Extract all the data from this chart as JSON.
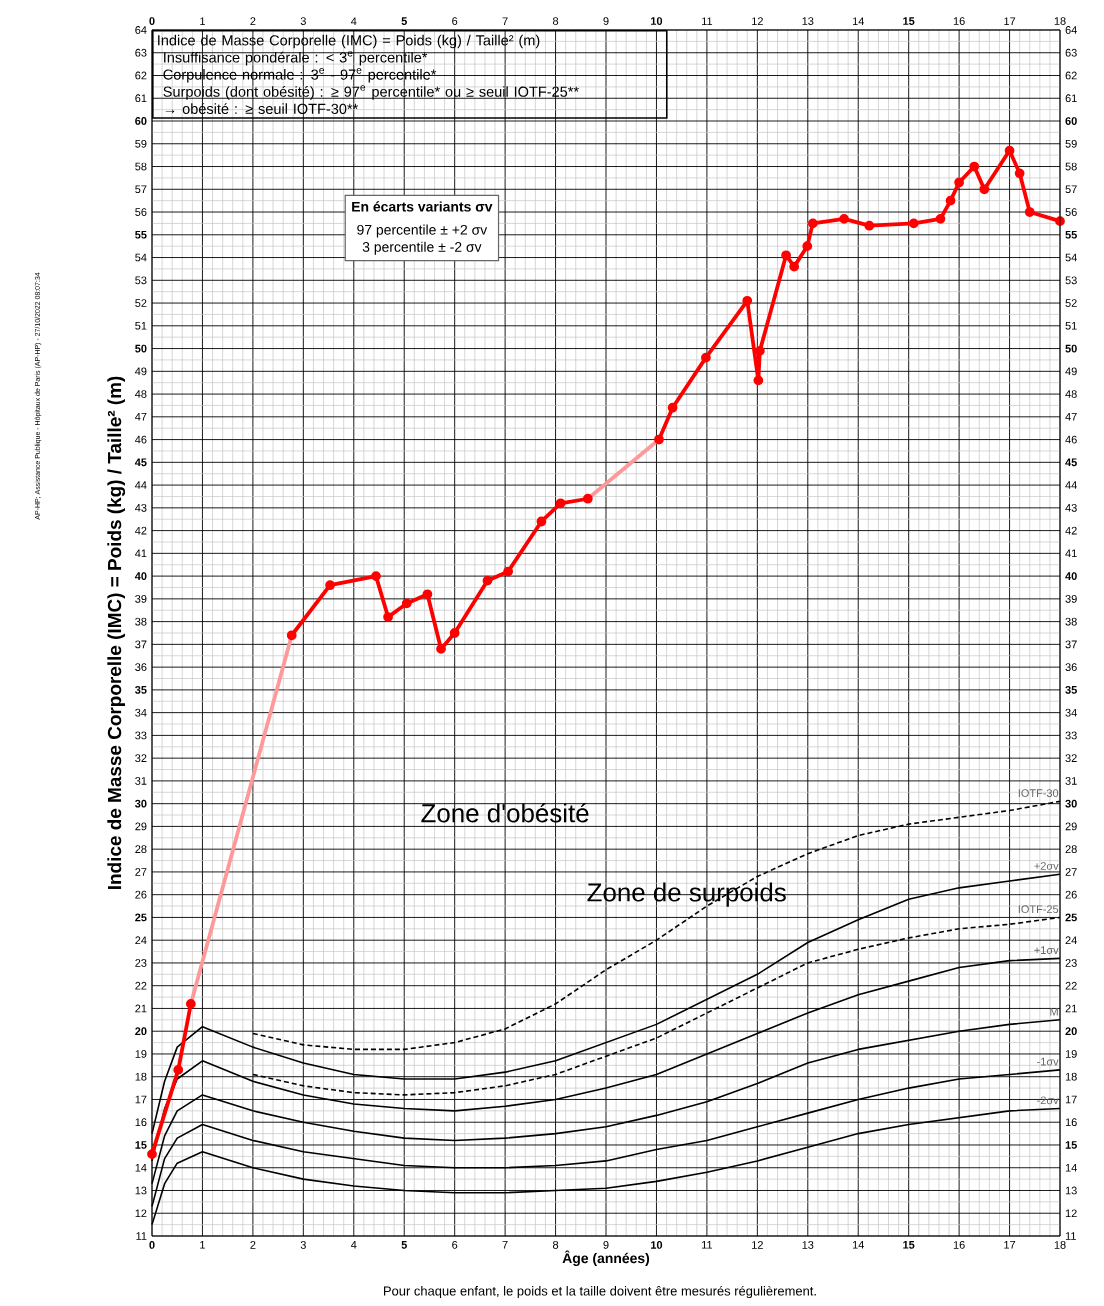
{
  "chart_data": {
    "type": "line",
    "xlabel": "Âge (années)",
    "ylabel": "Indice de Masse Corporelle (IMC) = Poids (kg) / Taille² (m)",
    "xlim": [
      0,
      18
    ],
    "xticks": [
      0,
      1,
      2,
      3,
      4,
      5,
      6,
      7,
      8,
      9,
      10,
      11,
      12,
      13,
      14,
      15,
      16,
      17,
      18
    ],
    "ylim": [
      11,
      64
    ],
    "yticks": [
      11,
      12,
      13,
      14,
      15,
      16,
      17,
      18,
      19,
      20,
      21,
      22,
      23,
      24,
      25,
      26,
      27,
      28,
      29,
      30,
      31,
      32,
      33,
      34,
      35,
      36,
      37,
      38,
      39,
      40,
      41,
      42,
      43,
      44,
      45,
      46,
      47,
      48,
      49,
      50,
      51,
      52,
      53,
      54,
      55,
      56,
      57,
      58,
      59,
      60,
      61,
      62,
      63,
      64
    ],
    "x2lim": [
      0,
      18
    ],
    "x2ticks": [
      0,
      1,
      2,
      3,
      4,
      5,
      6,
      7,
      8,
      9,
      10,
      11,
      12,
      13,
      14,
      15,
      16,
      17,
      18
    ],
    "y2lim": [
      11,
      64
    ],
    "y2ticks": [
      11,
      12,
      13,
      14,
      15,
      16,
      17,
      18,
      19,
      20,
      21,
      22,
      23,
      24,
      25,
      26,
      27,
      28,
      29,
      30,
      31,
      32,
      33,
      34,
      35,
      36,
      37,
      38,
      39,
      40,
      41,
      42,
      43,
      44,
      45,
      46,
      47,
      48,
      49,
      50,
      51,
      52,
      53,
      54,
      55,
      56,
      57,
      58,
      59,
      60,
      61,
      62,
      63,
      64
    ],
    "grid": true,
    "series": [
      {
        "name": "IOTF-30",
        "color": "#000000",
        "line_style": "dashed",
        "x": [
          2,
          3,
          4,
          5,
          6,
          7,
          8,
          9,
          10,
          11,
          12,
          13,
          14,
          15,
          16,
          17,
          18
        ],
        "values": [
          19.9,
          19.4,
          19.2,
          19.2,
          19.5,
          20.1,
          21.2,
          22.7,
          24.0,
          25.5,
          26.8,
          27.8,
          28.6,
          29.1,
          29.4,
          29.7,
          30.1
        ]
      },
      {
        "name": "+2σv",
        "color": "#000000",
        "x": [
          0,
          0.25,
          0.5,
          1,
          2,
          3,
          4,
          5,
          6,
          7,
          8,
          9,
          10,
          11,
          12,
          13,
          14,
          15,
          16,
          17,
          18
        ],
        "values": [
          15.5,
          17.8,
          19.3,
          20.2,
          19.3,
          18.6,
          18.1,
          17.9,
          17.9,
          18.2,
          18.7,
          19.5,
          20.3,
          21.4,
          22.5,
          23.9,
          24.9,
          25.8,
          26.3,
          26.6,
          26.9
        ]
      },
      {
        "name": "IOTF-25",
        "color": "#000000",
        "line_style": "dashed",
        "x": [
          2,
          3,
          4,
          5,
          6,
          7,
          8,
          9,
          10,
          11,
          12,
          13,
          14,
          15,
          16,
          17,
          18
        ],
        "values": [
          18.1,
          17.6,
          17.3,
          17.2,
          17.3,
          17.6,
          18.1,
          18.9,
          19.7,
          20.8,
          21.9,
          23.0,
          23.6,
          24.1,
          24.5,
          24.7,
          25.0
        ]
      },
      {
        "name": "+1σv",
        "color": "#000000",
        "x": [
          0,
          0.25,
          0.5,
          1,
          2,
          3,
          4,
          5,
          6,
          7,
          8,
          9,
          10,
          11,
          12,
          13,
          14,
          15,
          16,
          17,
          18
        ],
        "values": [
          14.3,
          16.6,
          17.9,
          18.7,
          17.8,
          17.2,
          16.8,
          16.6,
          16.5,
          16.7,
          17.0,
          17.5,
          18.1,
          19.0,
          19.9,
          20.8,
          21.6,
          22.2,
          22.8,
          23.1,
          23.2
        ]
      },
      {
        "name": "M",
        "color": "#000000",
        "x": [
          0,
          0.25,
          0.5,
          1,
          2,
          3,
          4,
          5,
          6,
          7,
          8,
          9,
          10,
          11,
          12,
          13,
          14,
          15,
          16,
          17,
          18
        ],
        "values": [
          13.3,
          15.4,
          16.5,
          17.2,
          16.5,
          16.0,
          15.6,
          15.3,
          15.2,
          15.3,
          15.5,
          15.8,
          16.3,
          16.9,
          17.7,
          18.6,
          19.2,
          19.6,
          20.0,
          20.3,
          20.5
        ]
      },
      {
        "name": "-1σv",
        "color": "#000000",
        "x": [
          0,
          0.25,
          0.5,
          1,
          2,
          3,
          4,
          5,
          6,
          7,
          8,
          9,
          10,
          11,
          12,
          13,
          14,
          15,
          16,
          17,
          18
        ],
        "values": [
          12.3,
          14.4,
          15.3,
          15.9,
          15.2,
          14.7,
          14.4,
          14.1,
          14.0,
          14.0,
          14.1,
          14.3,
          14.8,
          15.2,
          15.8,
          16.4,
          17.0,
          17.5,
          17.9,
          18.1,
          18.3
        ]
      },
      {
        "name": "-2σv",
        "color": "#000000",
        "x": [
          0,
          0.25,
          0.5,
          1,
          2,
          3,
          4,
          5,
          6,
          7,
          8,
          9,
          10,
          11,
          12,
          13,
          14,
          15,
          16,
          17,
          18
        ],
        "values": [
          11.5,
          13.3,
          14.2,
          14.7,
          14.0,
          13.5,
          13.2,
          13.0,
          12.9,
          12.9,
          13.0,
          13.1,
          13.4,
          13.8,
          14.3,
          14.9,
          15.5,
          15.9,
          16.2,
          16.5,
          16.6
        ]
      },
      {
        "color": "#ff9999",
        "x": [
          0.77,
          2.77,
          5.7,
          8.64,
          10.05
        ],
        "values": [
          21.2,
          37.4,
          null,
          43.4,
          46.0
        ]
      },
      {
        "color": "#ff0000",
        "marker": "circle",
        "x": [
          0,
          0.52,
          0.77,
          1.8,
          2.77,
          3.53,
          4.44,
          4.68,
          5.05,
          5.46,
          5.73,
          6.0,
          6.65,
          7.06,
          7.72,
          8.1,
          8.64,
          9.3,
          10.05,
          10.32,
          10.98,
          11.8,
          12.02,
          12.05,
          12.57,
          12.73,
          12.99,
          13.1,
          13.72,
          14.22,
          15.1,
          15.63,
          15.83,
          16.0,
          16.3,
          16.5,
          17.0,
          17.2,
          17.4,
          18.0
        ],
        "values": [
          14.6,
          18.3,
          21.2,
          null,
          37.4,
          39.6,
          40.0,
          38.2,
          38.8,
          39.2,
          36.8,
          37.5,
          39.8,
          40.2,
          42.4,
          43.2,
          43.4,
          null,
          46.0,
          47.4,
          49.6,
          52.1,
          48.6,
          49.9,
          54.1,
          53.6,
          54.5,
          55.5,
          55.7,
          55.4,
          55.5,
          55.7,
          56.5,
          57.3,
          58.0,
          57.0,
          58.7,
          57.7,
          56.0,
          55.6
        ]
      }
    ],
    "annotations": [
      "Indice de Masse Corporelle (IMC) = Poids (kg) / Taille² (m)",
      "Insuffisance pondérale : < 3$^{e}$ percentile*",
      "Corpulence normale : 3$^{e}$ - 97$^{e}$ percentile*",
      "Surpoids (dont obésité) : ≥ 97$^{e}$ percentile* ou ≥ seuil IOTF-25**",
      "→  obésité : ≥ seuil IOTF-30**",
      "En écarts variants σv",
      "97 percentile ± +2 σv",
      "3 percentile ± -2 σv",
      "Zone d'obésité",
      "Zone de surpoids",
      "Pour chaque enfant, le poids et la taille doivent être mesurés régulièrement.",
      "AP-HP; Assistance Publique - Hôpitaux de Paris (AP-HP) - 27/10/2022 08:07:34"
    ]
  }
}
